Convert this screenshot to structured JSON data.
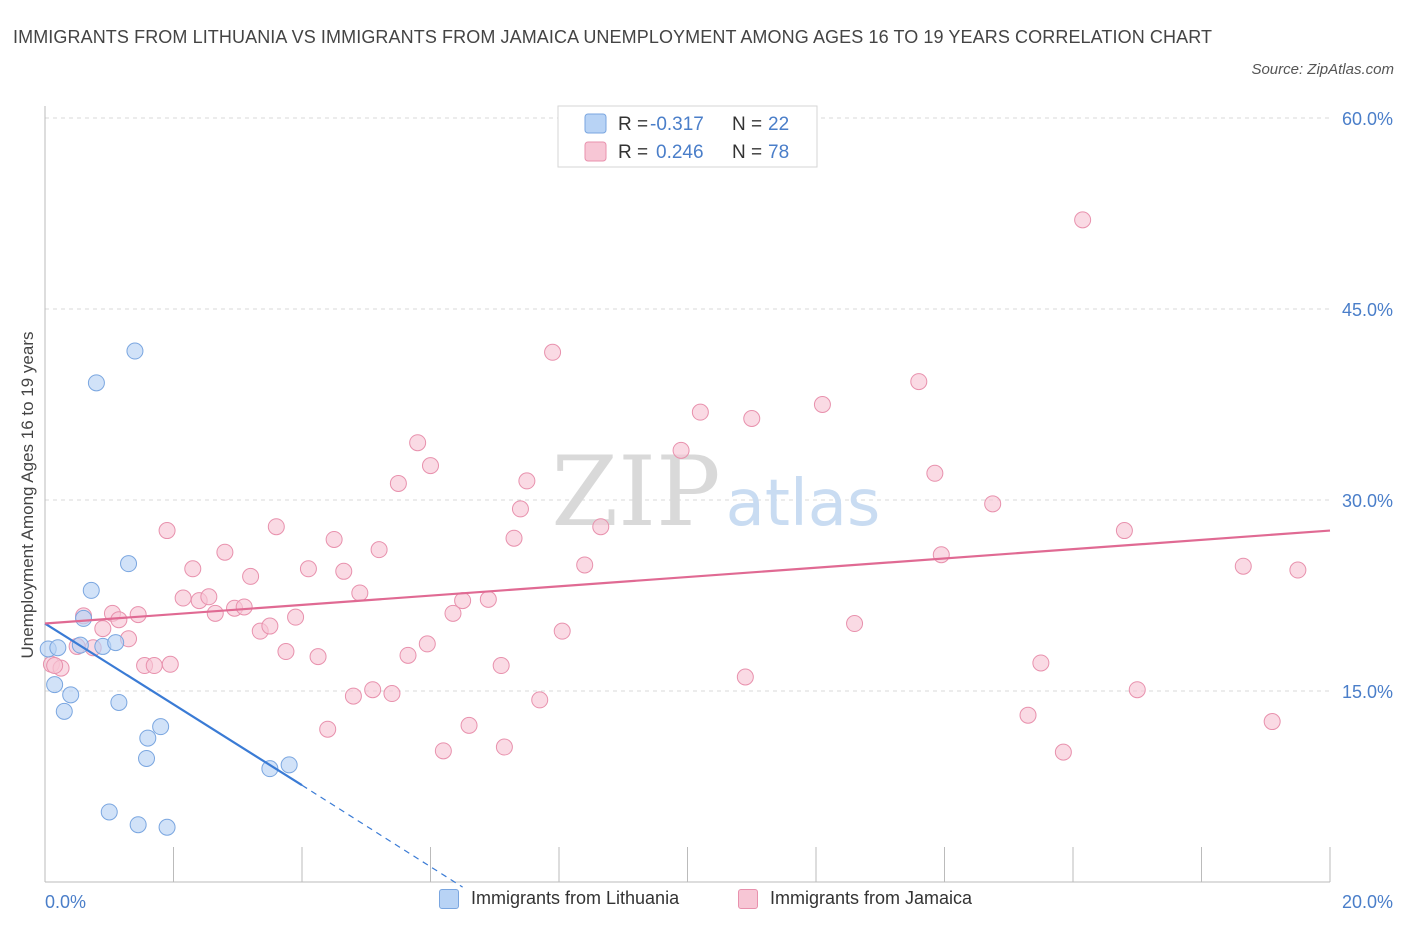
{
  "title": "IMMIGRANTS FROM LITHUANIA VS IMMIGRANTS FROM JAMAICA UNEMPLOYMENT AMONG AGES 16 TO 19 YEARS CORRELATION CHART",
  "source": "Source: ZipAtlas.com",
  "watermark": {
    "zip": "ZIP",
    "atlas": "atlas"
  },
  "colors": {
    "lithuania_fill": "#b8d3f5",
    "lithuania_stroke": "#7aa6e0",
    "lithuania_line": "#3a7bd5",
    "jamaica_fill": "#f7c6d5",
    "jamaica_stroke": "#e891ad",
    "jamaica_line": "#e06a93",
    "axis_label": "#4a7ec9",
    "grid": "#d8d8d8"
  },
  "legend_top": {
    "rows": [
      {
        "r_label": "R =",
        "r_value": "-0.317",
        "n_label": "N =",
        "n_value": "22",
        "series": "lithuania"
      },
      {
        "r_label": "R =",
        "r_value": "0.246",
        "n_label": "N =",
        "n_value": "78",
        "series": "jamaica"
      }
    ]
  },
  "legend_bottom": {
    "items": [
      {
        "label": "Immigrants from Lithuania",
        "series": "lithuania"
      },
      {
        "label": "Immigrants from Jamaica",
        "series": "jamaica"
      }
    ]
  },
  "chart_data": {
    "type": "scatter",
    "title": "IMMIGRANTS FROM LITHUANIA VS IMMIGRANTS FROM JAMAICA UNEMPLOYMENT AMONG AGES 16 TO 19 YEARS CORRELATION CHART",
    "xlabel": "",
    "ylabel": "Unemployment Among Ages 16 to 19 years",
    "xlim": [
      0,
      20
    ],
    "ylim": [
      0,
      60
    ],
    "x_tick_labels": [
      "0.0%",
      "20.0%"
    ],
    "y_ticks": [
      15,
      30,
      45,
      60
    ],
    "y_tick_labels": [
      "15.0%",
      "30.0%",
      "45.0%",
      "60.0%"
    ],
    "grid": true,
    "legend_position": "top-center",
    "series": [
      {
        "name": "Immigrants from Lithuania",
        "key": "lithuania",
        "points": [
          [
            0.05,
            18.3
          ],
          [
            0.15,
            15.5
          ],
          [
            0.3,
            13.4
          ],
          [
            0.4,
            14.7
          ],
          [
            0.2,
            18.4
          ],
          [
            0.55,
            18.6
          ],
          [
            0.6,
            20.7
          ],
          [
            0.72,
            22.9
          ],
          [
            0.8,
            39.2
          ],
          [
            0.9,
            18.5
          ],
          [
            1.1,
            18.8
          ],
          [
            1.15,
            14.1
          ],
          [
            1.3,
            25.0
          ],
          [
            1.4,
            41.7
          ],
          [
            1.6,
            11.3
          ],
          [
            1.58,
            9.7
          ],
          [
            1.8,
            12.2
          ],
          [
            1.0,
            5.5
          ],
          [
            1.45,
            4.5
          ],
          [
            1.9,
            4.3
          ],
          [
            3.5,
            8.9
          ],
          [
            3.8,
            9.2
          ]
        ],
        "trend": {
          "x": [
            0.0,
            4.0
          ],
          "y": [
            20.3,
            7.6
          ]
        },
        "trend_dashed": {
          "x": [
            4.0,
            6.5
          ],
          "y": [
            7.6,
            -0.4
          ]
        }
      },
      {
        "name": "Immigrants from Jamaica",
        "key": "jamaica",
        "points": [
          [
            0.1,
            17.1
          ],
          [
            0.25,
            16.8
          ],
          [
            0.5,
            18.5
          ],
          [
            0.6,
            20.9
          ],
          [
            0.75,
            18.4
          ],
          [
            0.9,
            19.9
          ],
          [
            1.05,
            21.1
          ],
          [
            1.15,
            20.6
          ],
          [
            1.3,
            19.1
          ],
          [
            1.45,
            21.0
          ],
          [
            1.55,
            17.0
          ],
          [
            1.7,
            17.0
          ],
          [
            1.95,
            17.1
          ],
          [
            1.9,
            27.6
          ],
          [
            2.15,
            22.3
          ],
          [
            2.3,
            24.6
          ],
          [
            2.4,
            22.1
          ],
          [
            2.55,
            22.4
          ],
          [
            2.65,
            21.1
          ],
          [
            2.8,
            25.9
          ],
          [
            2.95,
            21.5
          ],
          [
            3.1,
            21.6
          ],
          [
            3.2,
            24.0
          ],
          [
            3.35,
            19.7
          ],
          [
            3.5,
            20.1
          ],
          [
            3.6,
            27.9
          ],
          [
            3.75,
            18.1
          ],
          [
            3.9,
            20.8
          ],
          [
            4.1,
            24.6
          ],
          [
            4.25,
            17.7
          ],
          [
            4.4,
            12.0
          ],
          [
            4.5,
            26.9
          ],
          [
            4.65,
            24.4
          ],
          [
            4.8,
            14.6
          ],
          [
            4.9,
            22.7
          ],
          [
            5.1,
            15.1
          ],
          [
            5.2,
            26.1
          ],
          [
            5.4,
            14.8
          ],
          [
            5.5,
            31.3
          ],
          [
            5.65,
            17.8
          ],
          [
            5.8,
            34.5
          ],
          [
            5.95,
            18.7
          ],
          [
            6.0,
            32.7
          ],
          [
            6.2,
            10.3
          ],
          [
            6.35,
            21.1
          ],
          [
            6.5,
            22.1
          ],
          [
            6.6,
            12.3
          ],
          [
            6.9,
            22.2
          ],
          [
            7.1,
            17.0
          ],
          [
            7.15,
            10.6
          ],
          [
            7.3,
            27.0
          ],
          [
            7.4,
            29.3
          ],
          [
            7.5,
            31.5
          ],
          [
            7.7,
            14.3
          ],
          [
            7.9,
            41.6
          ],
          [
            8.05,
            19.7
          ],
          [
            8.4,
            24.9
          ],
          [
            8.65,
            27.9
          ],
          [
            9.9,
            33.9
          ],
          [
            10.2,
            36.9
          ],
          [
            10.9,
            16.1
          ],
          [
            11.0,
            36.4
          ],
          [
            12.1,
            37.5
          ],
          [
            12.6,
            20.3
          ],
          [
            13.6,
            39.3
          ],
          [
            13.85,
            32.1
          ],
          [
            13.95,
            25.7
          ],
          [
            14.75,
            29.7
          ],
          [
            15.3,
            13.1
          ],
          [
            15.5,
            17.2
          ],
          [
            15.85,
            10.2
          ],
          [
            16.15,
            52.0
          ],
          [
            16.8,
            27.6
          ],
          [
            17.0,
            15.1
          ],
          [
            18.65,
            24.8
          ],
          [
            19.1,
            12.6
          ],
          [
            19.5,
            24.5
          ],
          [
            0.15,
            17.0
          ]
        ],
        "trend": {
          "x": [
            0.0,
            20.0
          ],
          "y": [
            20.3,
            27.6
          ]
        }
      }
    ]
  }
}
